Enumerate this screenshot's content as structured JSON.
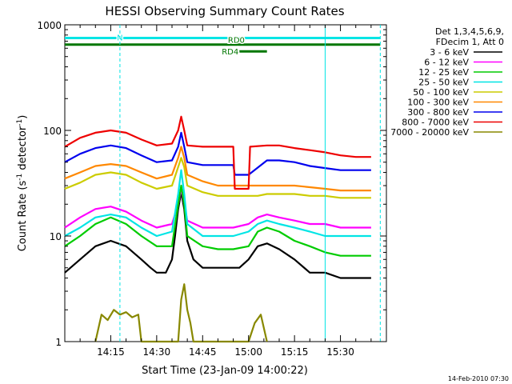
{
  "chart_data": {
    "type": "line",
    "title": "HESSI Observing Summary Count Rates",
    "xlabel": "Start Time (23-Jan-09 14:00:22)",
    "ylabel_main": "Count Rate (s",
    "ylabel_sup1": "-1",
    "ylabel_mid": " detector",
    "ylabel_sup2": "-1",
    "ylabel_end": ")",
    "yscale": "log",
    "ylim": [
      1,
      1000
    ],
    "xlim_minutes": [
      0,
      105
    ],
    "x_ticks": [
      {
        "label": "14:15",
        "value": 15
      },
      {
        "label": "14:30",
        "value": 30
      },
      {
        "label": "14:45",
        "value": 45
      },
      {
        "label": "15:00",
        "value": 60
      },
      {
        "label": "15:15",
        "value": 75
      },
      {
        "label": "15:30",
        "value": 90
      }
    ],
    "y_ticks": [
      {
        "label": "1",
        "value": 1
      },
      {
        "label": "10",
        "value": 10
      },
      {
        "label": "100",
        "value": 100
      },
      {
        "label": "1000",
        "value": 1000
      }
    ],
    "legend": {
      "placement": "right",
      "header1": "Det 1,3,4,5,6,9,",
      "header2": "FDecim 1, Att 0",
      "items": [
        {
          "label": "3 - 6 keV",
          "color": "#000000"
        },
        {
          "label": "6 - 12 keV",
          "color": "#ff00ff"
        },
        {
          "label": "12 - 25 keV",
          "color": "#00cc00"
        },
        {
          "label": "25 - 50 keV",
          "color": "#00e5e5"
        },
        {
          "label": "50 - 100 keV",
          "color": "#cccc00"
        },
        {
          "label": "100 - 300 keV",
          "color": "#ff8800"
        },
        {
          "label": "300 - 800 keV",
          "color": "#0000ee"
        },
        {
          "label": "800 - 7000 keV",
          "color": "#ee0000"
        },
        {
          "label": "7000 - 20000 keV",
          "color": "#888800"
        }
      ]
    },
    "series": [
      {
        "name": "3 - 6 keV",
        "color": "#000000",
        "x": [
          0,
          5,
          10,
          15,
          20,
          25,
          28,
          30,
          33,
          35,
          36,
          37,
          38,
          39,
          40,
          42,
          45,
          48,
          50,
          52,
          55,
          57,
          60,
          63,
          66,
          70,
          75,
          80,
          85,
          90,
          95,
          100
        ],
        "y": [
          4.5,
          6,
          8,
          9,
          8,
          6,
          5,
          4.5,
          4.5,
          6,
          10,
          18,
          26,
          18,
          9,
          6,
          5,
          5,
          5,
          5,
          5,
          5,
          6,
          8,
          8.5,
          7.5,
          6,
          4.5,
          4.5,
          4,
          4,
          4
        ]
      },
      {
        "name": "6 - 12 keV",
        "color": "#ff00ff",
        "x": [
          0,
          5,
          10,
          15,
          20,
          25,
          30,
          35,
          37,
          38,
          39,
          40,
          45,
          50,
          55,
          60,
          63,
          66,
          70,
          75,
          80,
          85,
          90,
          95,
          100
        ],
        "y": [
          12,
          15,
          18,
          19,
          17,
          14,
          12,
          13,
          20,
          28,
          20,
          14,
          12,
          12,
          12,
          13,
          15,
          16,
          15,
          14,
          13,
          13,
          12,
          12,
          12
        ]
      },
      {
        "name": "12 - 25 keV",
        "color": "#00cc00",
        "x": [
          0,
          5,
          10,
          15,
          20,
          25,
          30,
          35,
          37,
          38,
          39,
          40,
          45,
          50,
          55,
          60,
          63,
          66,
          70,
          75,
          80,
          85,
          90,
          95,
          100
        ],
        "y": [
          8,
          10,
          13,
          15,
          13,
          10,
          8,
          8,
          20,
          30,
          20,
          10,
          8,
          7.5,
          7.5,
          8,
          11,
          12,
          11,
          9,
          8,
          7,
          6.5,
          6.5,
          6.5
        ]
      },
      {
        "name": "25 - 50 keV",
        "color": "#00e5e5",
        "x": [
          0,
          5,
          10,
          15,
          20,
          25,
          30,
          35,
          37,
          38,
          39,
          40,
          45,
          50,
          55,
          60,
          63,
          66,
          70,
          75,
          80,
          85,
          90,
          95,
          100
        ],
        "y": [
          10,
          12,
          15,
          16,
          15,
          12,
          10,
          11,
          25,
          42,
          25,
          13,
          10,
          10,
          10,
          11,
          13,
          14,
          13,
          12,
          11,
          10,
          10,
          10,
          10
        ]
      },
      {
        "name": "50 - 100 keV",
        "color": "#cccc00",
        "x": [
          0,
          5,
          10,
          15,
          20,
          25,
          30,
          35,
          37,
          38,
          39,
          40,
          45,
          50,
          55,
          60,
          63,
          66,
          70,
          75,
          80,
          85,
          90,
          95,
          100
        ],
        "y": [
          28,
          32,
          38,
          40,
          38,
          32,
          28,
          30,
          45,
          55,
          45,
          30,
          26,
          24,
          24,
          24,
          24,
          25,
          25,
          25,
          24,
          24,
          23,
          23,
          23
        ]
      },
      {
        "name": "100 - 300 keV",
        "color": "#ff8800",
        "x": [
          0,
          5,
          10,
          15,
          20,
          25,
          30,
          35,
          37,
          38,
          39,
          40,
          45,
          50,
          55,
          60,
          63,
          66,
          70,
          75,
          80,
          85,
          90,
          95,
          100
        ],
        "y": [
          35,
          40,
          46,
          48,
          46,
          40,
          35,
          38,
          55,
          70,
          55,
          38,
          33,
          30,
          30,
          30,
          30,
          30,
          30,
          30,
          29,
          28,
          27,
          27,
          27
        ]
      },
      {
        "name": "300 - 800 keV",
        "color": "#0000ee",
        "x": [
          0,
          5,
          10,
          15,
          20,
          25,
          30,
          35,
          37,
          38,
          39,
          40,
          45,
          50,
          55,
          55.5,
          60,
          66,
          70,
          75,
          80,
          85,
          90,
          95,
          100
        ],
        "y": [
          50,
          60,
          68,
          72,
          68,
          58,
          50,
          52,
          70,
          95,
          70,
          50,
          47,
          47,
          47,
          38,
          38,
          52,
          52,
          50,
          46,
          44,
          42,
          42,
          42
        ]
      },
      {
        "name": "800 - 7000 keV",
        "color": "#ee0000",
        "x": [
          0,
          5,
          10,
          15,
          20,
          25,
          30,
          35,
          37,
          38,
          39,
          40,
          45,
          50,
          55,
          55.5,
          60,
          60.5,
          66,
          70,
          75,
          80,
          85,
          90,
          95,
          100
        ],
        "y": [
          70,
          85,
          95,
          100,
          95,
          82,
          72,
          75,
          100,
          135,
          100,
          72,
          70,
          70,
          70,
          28,
          28,
          70,
          72,
          72,
          68,
          65,
          62,
          58,
          56,
          56
        ]
      },
      {
        "name": "7000 - 20000 keV",
        "color": "#888800",
        "x": [
          10,
          12,
          14,
          16,
          18,
          20,
          22,
          24,
          25,
          37,
          38,
          39,
          40,
          41,
          42,
          60,
          62,
          64,
          66
        ],
        "y": [
          1,
          1.8,
          1.6,
          2,
          1.8,
          1.9,
          1.7,
          1.8,
          1,
          1,
          2.5,
          3.5,
          2,
          1.5,
          1,
          1,
          1.5,
          1.8,
          1
        ]
      }
    ],
    "annotations": [
      {
        "label": "N",
        "color": "#00e5e5",
        "x_start": 0,
        "x_end": 103
      },
      {
        "label": "RD0",
        "color": "#007700",
        "x_start": 0,
        "x_end": 103
      },
      {
        "label": "RD4",
        "color": "#007700",
        "x_start": 57,
        "x_end": 66
      }
    ]
  },
  "footer_timestamp": "14-Feb-2010 07:30"
}
